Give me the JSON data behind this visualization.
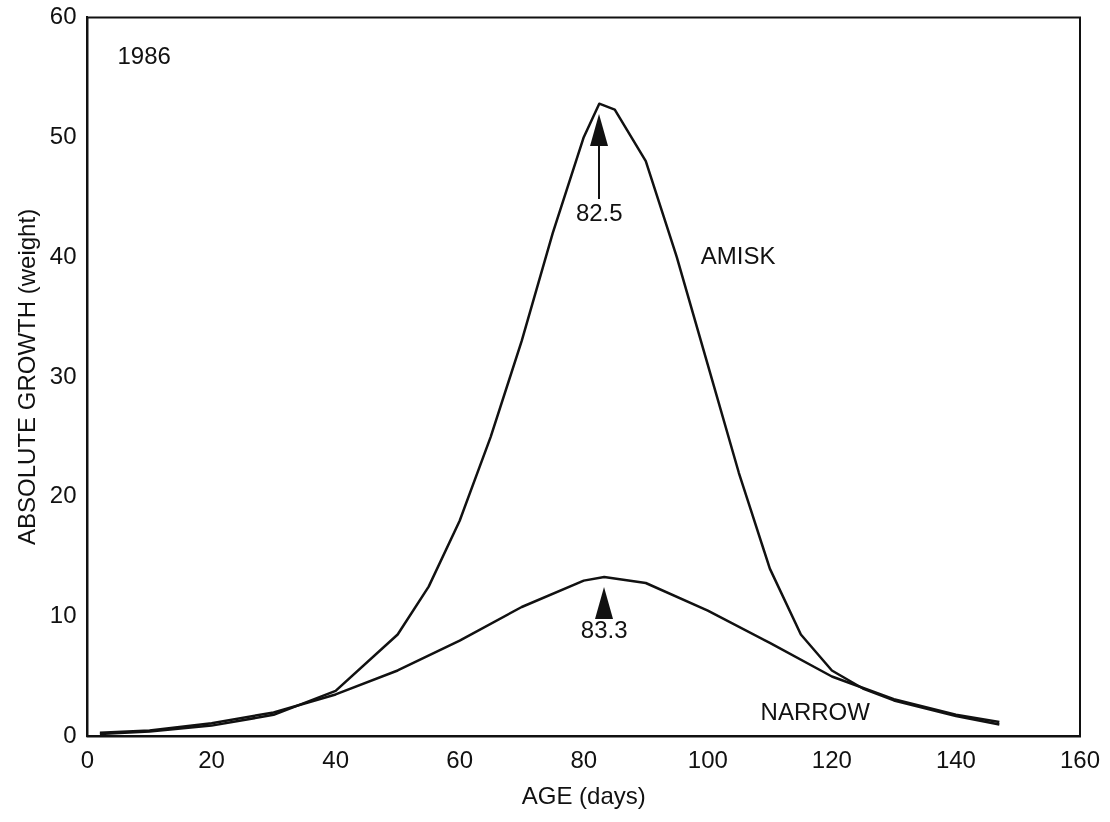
{
  "chart_data": {
    "type": "line",
    "xlabel": "AGE (days)",
    "ylabel": "ABSOLUTE GROWTH (weight)",
    "xlim": [
      0,
      160
    ],
    "xticks": [
      0,
      20,
      40,
      60,
      80,
      100,
      120,
      140,
      160
    ],
    "ylim": [
      0,
      60
    ],
    "yticks": [
      0,
      10,
      20,
      30,
      40,
      50,
      60
    ],
    "grid": false,
    "legend": false,
    "marker": "none",
    "line_style": "solid",
    "series": [
      {
        "name": "AMISK",
        "color": "#111111",
        "x": [
          2,
          10,
          20,
          30,
          40,
          50,
          55,
          60,
          65,
          70,
          75,
          80,
          82.5,
          85,
          90,
          95,
          100,
          105,
          110,
          115,
          120,
          125,
          130,
          140,
          147
        ],
        "values": [
          0.2,
          0.4,
          0.9,
          1.8,
          3.8,
          8.5,
          12.5,
          18,
          25,
          33,
          42,
          50,
          52.8,
          52.3,
          48,
          40,
          31,
          22,
          14,
          8.5,
          5.5,
          4,
          3,
          1.7,
          1
        ]
      },
      {
        "name": "NARROW",
        "color": "#111111",
        "x": [
          2,
          10,
          20,
          30,
          40,
          50,
          60,
          70,
          80,
          83.3,
          90,
          100,
          110,
          120,
          130,
          140,
          147
        ],
        "values": [
          0.3,
          0.5,
          1.1,
          2,
          3.5,
          5.5,
          8,
          10.8,
          13,
          13.3,
          12.8,
          10.5,
          7.8,
          5,
          3.1,
          1.8,
          1.2
        ]
      }
    ],
    "annotations": [
      "1986",
      "82.5",
      "83.3"
    ]
  }
}
